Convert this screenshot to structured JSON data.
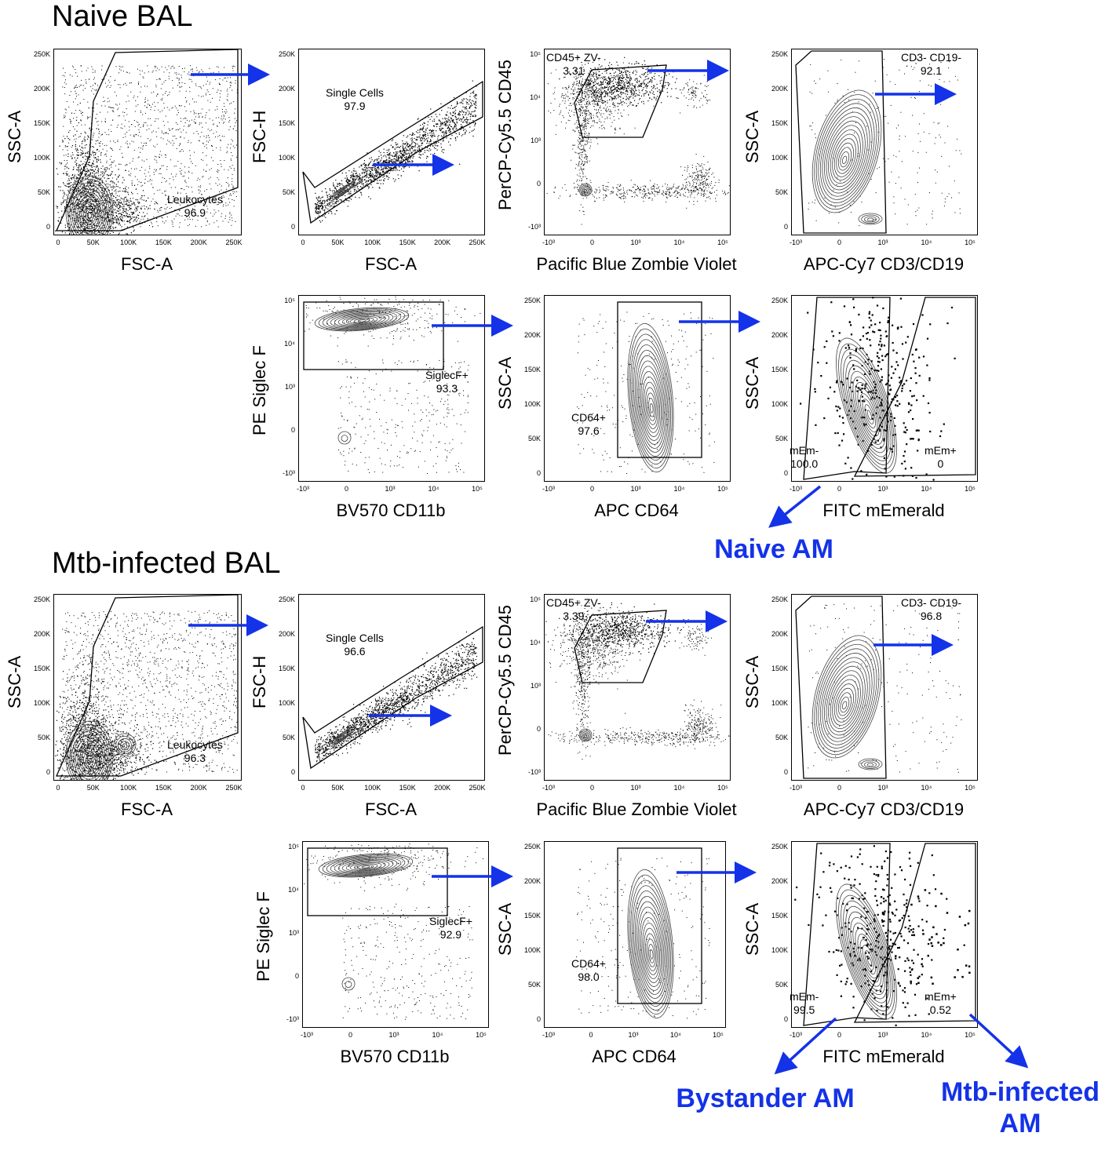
{
  "sections": [
    {
      "title": "Naive BAL",
      "panels": [
        {
          "x_label": "FSC-A",
          "y_label": "SSC-A",
          "gates": [
            {
              "name": "Leukocytes",
              "value": "96.9"
            }
          ]
        },
        {
          "x_label": "FSC-A",
          "y_label": "FSC-H",
          "gates": [
            {
              "name": "Single Cells",
              "value": "97.9"
            }
          ]
        },
        {
          "x_label": "Pacific Blue Zombie Violet",
          "y_label": "PerCP-Cy5.5 CD45",
          "gates": [
            {
              "name": "CD45+ ZV-",
              "value": "3.31"
            }
          ]
        },
        {
          "x_label": "APC-Cy7 CD3/CD19",
          "y_label": "SSC-A",
          "gates": [
            {
              "name": "CD3- CD19-",
              "value": "92.1"
            }
          ]
        },
        {
          "x_label": "BV570 CD11b",
          "y_label": "PE Siglec F",
          "gates": [
            {
              "name": "SiglecF+",
              "value": "93.3"
            }
          ]
        },
        {
          "x_label": "APC CD64",
          "y_label": "SSC-A",
          "gates": [
            {
              "name": "CD64+",
              "value": "97.6"
            }
          ]
        },
        {
          "x_label": "FITC mEmerald",
          "y_label": "SSC-A",
          "gates": [
            {
              "name": "mEm-",
              "value": "100.0"
            },
            {
              "name": "mEm+",
              "value": "0"
            }
          ]
        }
      ],
      "outcomes": [
        "Naive AM"
      ]
    },
    {
      "title": "Mtb-infected BAL",
      "panels": [
        {
          "x_label": "FSC-A",
          "y_label": "SSC-A",
          "gates": [
            {
              "name": "Leukocytes",
              "value": "96.3"
            }
          ]
        },
        {
          "x_label": "FSC-A",
          "y_label": "FSC-H",
          "gates": [
            {
              "name": "Single Cells",
              "value": "96.6"
            }
          ]
        },
        {
          "x_label": "Pacific Blue Zombie Violet",
          "y_label": "PerCP-Cy5.5 CD45",
          "gates": [
            {
              "name": "CD45+ ZV-",
              "value": "3.39"
            }
          ]
        },
        {
          "x_label": "APC-Cy7 CD3/CD19",
          "y_label": "SSC-A",
          "gates": [
            {
              "name": "CD3- CD19-",
              "value": "96.8"
            }
          ]
        },
        {
          "x_label": "BV570 CD11b",
          "y_label": "PE Siglec F",
          "gates": [
            {
              "name": "SiglecF+",
              "value": "92.9"
            }
          ]
        },
        {
          "x_label": "APC CD64",
          "y_label": "SSC-A",
          "gates": [
            {
              "name": "CD64+",
              "value": "98.0"
            }
          ]
        },
        {
          "x_label": "FITC mEmerald",
          "y_label": "SSC-A",
          "gates": [
            {
              "name": "mEm-",
              "value": "99.5"
            },
            {
              "name": "mEm+",
              "value": "0.52"
            }
          ]
        }
      ],
      "outcomes": [
        "Bystander AM",
        "Mtb-infected\nAM"
      ]
    }
  ],
  "axis_ticks": {
    "linear_y": [
      "250K",
      "200K",
      "150K",
      "100K",
      "50K",
      "0"
    ],
    "linear_x": [
      "0",
      "50K",
      "100K",
      "150K",
      "200K",
      "250K"
    ],
    "log_y": [
      "10⁵",
      "10⁴",
      "10³",
      "0",
      "-10³"
    ],
    "log_x": [
      "-10³",
      "0",
      "10³",
      "10⁴",
      "10⁵"
    ]
  },
  "colors": {
    "arrow": "#1432e8",
    "outcome_text": "#1432e8",
    "dots": "#000000"
  }
}
